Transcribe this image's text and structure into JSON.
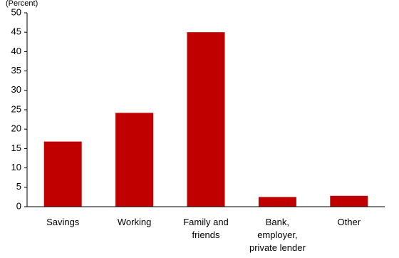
{
  "chart_data": {
    "type": "bar",
    "title": "",
    "xlabel": "",
    "ylabel": "(Percent)",
    "ylim": [
      0,
      50
    ],
    "yticks": [
      0,
      5,
      10,
      15,
      20,
      25,
      30,
      35,
      40,
      45,
      50
    ],
    "grid": false,
    "legend": "none",
    "categories": [
      [
        "Savings"
      ],
      [
        "Working"
      ],
      [
        "Family and",
        "friends"
      ],
      [
        "Bank,",
        "employer,",
        "private lender"
      ],
      [
        "Other"
      ]
    ],
    "values": [
      16.8,
      24.2,
      45.0,
      2.5,
      2.8
    ],
    "bar_color": "#c00000",
    "axis_color": "#000000"
  }
}
